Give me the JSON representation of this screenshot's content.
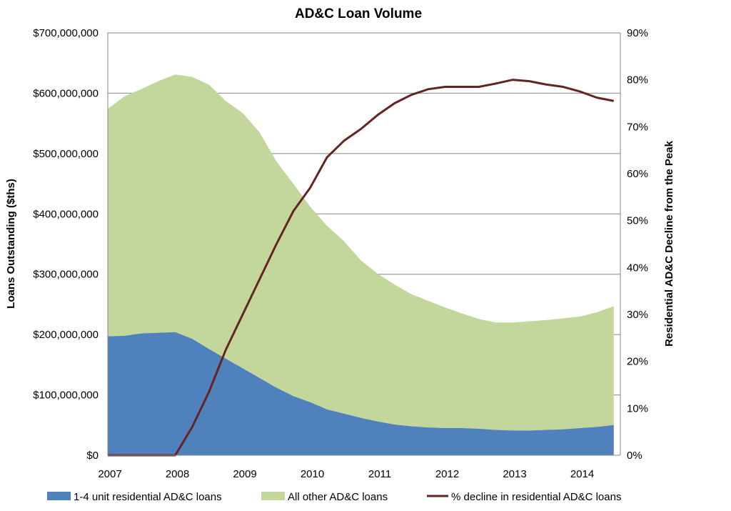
{
  "chart_data": {
    "type": "area",
    "title": "AD&C Loan Volume",
    "ylabel": "Loans Outstanding ($ths)",
    "y2label": "Residential AD&C Decline from the Peak",
    "ylim": [
      0,
      700000000
    ],
    "y2lim": [
      0,
      0.9
    ],
    "xlim": [
      2007,
      2014.5
    ],
    "x_ticks": [
      "2007",
      "2008",
      "2009",
      "2010",
      "2011",
      "2012",
      "2013",
      "2014"
    ],
    "y_ticks": [
      "$0",
      "$100,000,000",
      "$200,000,000",
      "$300,000,000",
      "$400,000,000",
      "$500,000,000",
      "$600,000,000",
      "$700,000,000"
    ],
    "y2_ticks": [
      "0%",
      "10%",
      "20%",
      "30%",
      "40%",
      "50%",
      "60%",
      "70%",
      "80%",
      "90%"
    ],
    "x": [
      2007.0,
      2007.25,
      2007.5,
      2007.75,
      2008.0,
      2008.25,
      2008.5,
      2008.75,
      2009.0,
      2009.25,
      2009.5,
      2009.75,
      2010.0,
      2010.25,
      2010.5,
      2010.75,
      2011.0,
      2011.25,
      2011.5,
      2011.75,
      2012.0,
      2012.25,
      2012.5,
      2012.75,
      2013.0,
      2013.25,
      2013.5,
      2013.75,
      2014.0,
      2014.25,
      2014.5
    ],
    "series": [
      {
        "name": "1-4 unit residential AD&C loans",
        "kind": "area",
        "axis": "left",
        "color": "#4f81bd",
        "values": [
          197000000,
          198000000,
          202000000,
          203000000,
          204000000,
          193000000,
          176000000,
          160000000,
          144000000,
          128000000,
          112000000,
          98000000,
          88000000,
          76000000,
          69000000,
          62000000,
          56000000,
          51000000,
          48000000,
          46000000,
          45000000,
          45000000,
          44000000,
          42000000,
          41000000,
          41000000,
          42000000,
          43000000,
          45000000,
          47000000,
          50000000
        ]
      },
      {
        "name": "All other AD&C loans",
        "kind": "area",
        "axis": "left",
        "stacked_on": "1-4 unit residential AD&C loans",
        "color": "#c3d69b",
        "values": [
          377000000,
          397000000,
          405000000,
          417000000,
          427000000,
          434000000,
          438000000,
          427000000,
          423000000,
          407000000,
          375000000,
          352000000,
          324000000,
          304000000,
          286000000,
          261000000,
          245000000,
          232000000,
          219000000,
          210000000,
          200000000,
          190000000,
          182000000,
          178000000,
          179000000,
          181000000,
          182000000,
          184000000,
          185000000,
          190000000,
          197000000
        ]
      },
      {
        "name": "% decline in residential AD&C loans",
        "kind": "line",
        "axis": "right",
        "color": "#632523",
        "values": [
          0.0,
          0.0,
          0.0,
          0.0,
          0.0,
          0.06,
          0.135,
          0.225,
          0.3,
          0.375,
          0.45,
          0.52,
          0.57,
          0.635,
          0.67,
          0.695,
          0.725,
          0.75,
          0.768,
          0.78,
          0.785,
          0.785,
          0.785,
          0.792,
          0.8,
          0.797,
          0.79,
          0.785,
          0.775,
          0.762,
          0.755
        ]
      }
    ],
    "legend": {
      "placement": "bottom",
      "entries": [
        "1-4 unit residential AD&C loans",
        "All other AD&C loans",
        "% decline in residential AD&C loans"
      ]
    },
    "grid": true
  }
}
